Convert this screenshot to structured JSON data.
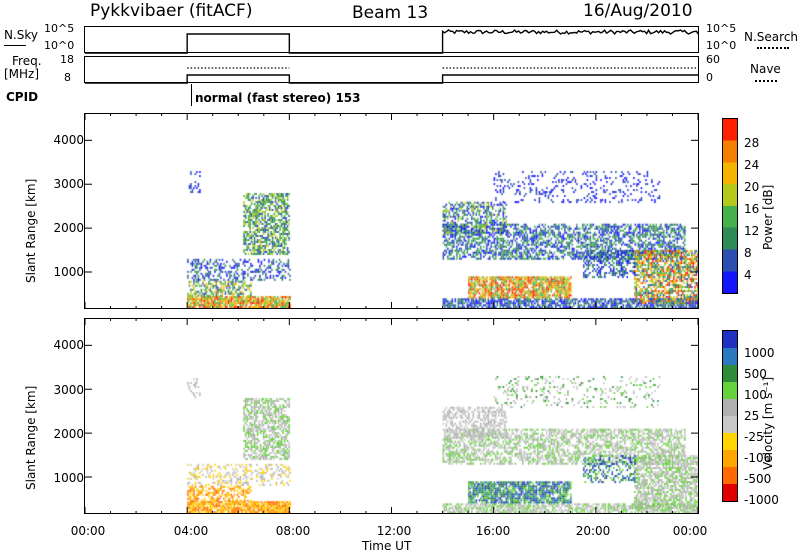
{
  "header": {
    "radar": "Pykkvibaer (fitACF)",
    "beam": "Beam 13",
    "date": "16/Aug/2010"
  },
  "top_panels": {
    "nsky_label": "N.Sky",
    "nsearch_label": "N.Search",
    "nsky_ticks": [
      "10^5",
      "10^0"
    ],
    "nsearch_ticks": [
      "10^5",
      "10^0"
    ],
    "freq_label": "Freq.",
    "freq_unit": "[MHz]",
    "freq_ticks": [
      "18",
      "8"
    ],
    "nave_label": "Nave",
    "nave_ticks": [
      "60",
      "0"
    ],
    "cpid_label": "CPID",
    "cpid_text": "normal (fast stereo) 153"
  },
  "colors": {
    "power": [
      "#1414ff",
      "#2a4fb0",
      "#2e8b57",
      "#46b04a",
      "#b5c91c",
      "#f5b400",
      "#f57f00",
      "#ff2000"
    ],
    "velocity": [
      "#e00000",
      "#ff6a00",
      "#ffa500",
      "#ffd400",
      "#c8c8c8",
      "#b0b0b0",
      "#66d33c",
      "#2e8b3a",
      "#2a7abf",
      "#2030c0"
    ]
  },
  "chart_data": [
    {
      "type": "heatmap",
      "title": "",
      "ylabel": "Slant Range [km]",
      "xlabel": "",
      "ylim": [
        180,
        4600
      ],
      "y_ticks": [
        1000,
        2000,
        3000,
        4000
      ],
      "x_ticks": [
        "00:00",
        "04:00",
        "08:00",
        "12:00",
        "16:00",
        "20:00",
        "00:00"
      ],
      "colorbar": {
        "label": "Power [dB]",
        "ticks": [
          "4",
          "8",
          "12",
          "16",
          "20",
          "24",
          "28"
        ]
      }
    },
    {
      "type": "heatmap",
      "title": "",
      "ylabel": "Slant Range [km]",
      "xlabel": "Time UT",
      "ylim": [
        180,
        4600
      ],
      "y_ticks": [
        1000,
        2000,
        3000,
        4000
      ],
      "x_ticks": [
        "00:00",
        "04:00",
        "08:00",
        "12:00",
        "16:00",
        "20:00",
        "00:00"
      ],
      "colorbar": {
        "label": "Velocity [m s⁻¹]",
        "ticks": [
          "1000",
          "500",
          "100",
          "25",
          "-25",
          "-100",
          "-500",
          "-1000"
        ]
      }
    }
  ]
}
